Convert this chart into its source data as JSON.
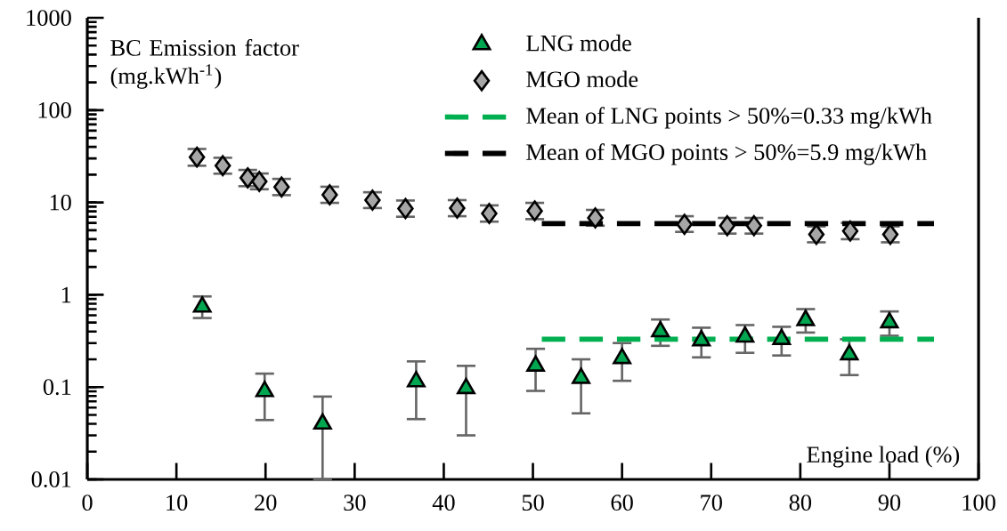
{
  "chart_data": {
    "type": "scatter",
    "xlabel": "Engine load (%)",
    "ylabel": "BC Emission factor (mg.kWh$^{-1}$)",
    "xlim": [
      0,
      100
    ],
    "ylim": [
      0.01,
      1000
    ],
    "log": true,
    "legend": "top",
    "xticks": [
      0,
      10,
      20,
      30,
      40,
      50,
      60,
      70,
      80,
      90,
      100
    ],
    "yticks": [
      0.01,
      0.1,
      1,
      10,
      100,
      1000
    ],
    "series": [
      {
        "name": "LNG mode",
        "marker": "triangle",
        "color": "#00a650",
        "x": [
          12.9,
          19.9,
          26.4,
          36.9,
          42.5,
          50.3,
          55.4,
          60.0,
          64.3,
          68.9,
          73.8,
          77.9,
          80.6,
          85.5,
          90.0
        ],
        "values": [
          0.74,
          0.09,
          0.04,
          0.115,
          0.097,
          0.17,
          0.125,
          0.205,
          0.4,
          0.32,
          0.35,
          0.33,
          0.53,
          0.225,
          0.5
        ],
        "errors": [
          [
            0.56,
            0.96
          ],
          [
            0.044,
            0.14
          ],
          [
            0.01,
            0.079
          ],
          [
            0.045,
            0.19
          ],
          [
            0.03,
            0.17
          ],
          [
            0.091,
            0.26
          ],
          [
            0.052,
            0.2
          ],
          [
            0.117,
            0.3
          ],
          [
            0.28,
            0.54
          ],
          [
            0.21,
            0.44
          ],
          [
            0.235,
            0.47
          ],
          [
            0.22,
            0.45
          ],
          [
            0.39,
            0.7
          ],
          [
            0.135,
            0.33
          ],
          [
            0.36,
            0.66
          ]
        ]
      },
      {
        "name": "MGO mode",
        "marker": "diamond",
        "color": "#a6a6a6",
        "x": [
          12.3,
          15.2,
          18.0,
          19.3,
          21.8,
          27.2,
          32.0,
          35.7,
          41.5,
          45.1,
          50.2,
          57.0,
          67.0,
          71.8,
          74.8,
          81.8,
          85.6,
          90.1
        ],
        "values": [
          31,
          25,
          18.5,
          16.9,
          14.7,
          12.1,
          10.6,
          8.6,
          8.7,
          7.6,
          8.1,
          6.8,
          5.8,
          5.6,
          5.6,
          4.5,
          4.9,
          4.5
        ],
        "errors": [
          [
            25,
            38
          ],
          [
            20.5,
            30.5
          ],
          [
            15,
            22.5
          ],
          [
            13.9,
            20.6
          ],
          [
            12,
            18
          ],
          [
            9.9,
            14.8
          ],
          [
            8.7,
            12.9
          ],
          [
            7,
            10.5
          ],
          [
            7.1,
            10.6
          ],
          [
            6.2,
            9.3
          ],
          [
            6.6,
            9.9
          ],
          [
            5.6,
            8.3
          ],
          [
            4.8,
            7.1
          ],
          [
            4.6,
            6.8
          ],
          [
            4.6,
            6.8
          ],
          [
            3.7,
            5.5
          ],
          [
            4,
            6
          ],
          [
            3.7,
            5.5
          ]
        ]
      },
      {
        "name": "Mean of LNG points > 50%=0.33 mg/kWh",
        "type": "line",
        "marker": "none",
        "line_style": "dashed",
        "color": "#00b050",
        "x": [
          51,
          95
        ],
        "values": [
          0.33,
          0.33
        ]
      },
      {
        "name": "Mean of MGO points > 50%=5.9 mg/kWh",
        "type": "line",
        "marker": "none",
        "line_style": "dashed",
        "color": "#000000",
        "x": [
          51,
          95
        ],
        "values": [
          5.9,
          5.9
        ]
      }
    ]
  }
}
